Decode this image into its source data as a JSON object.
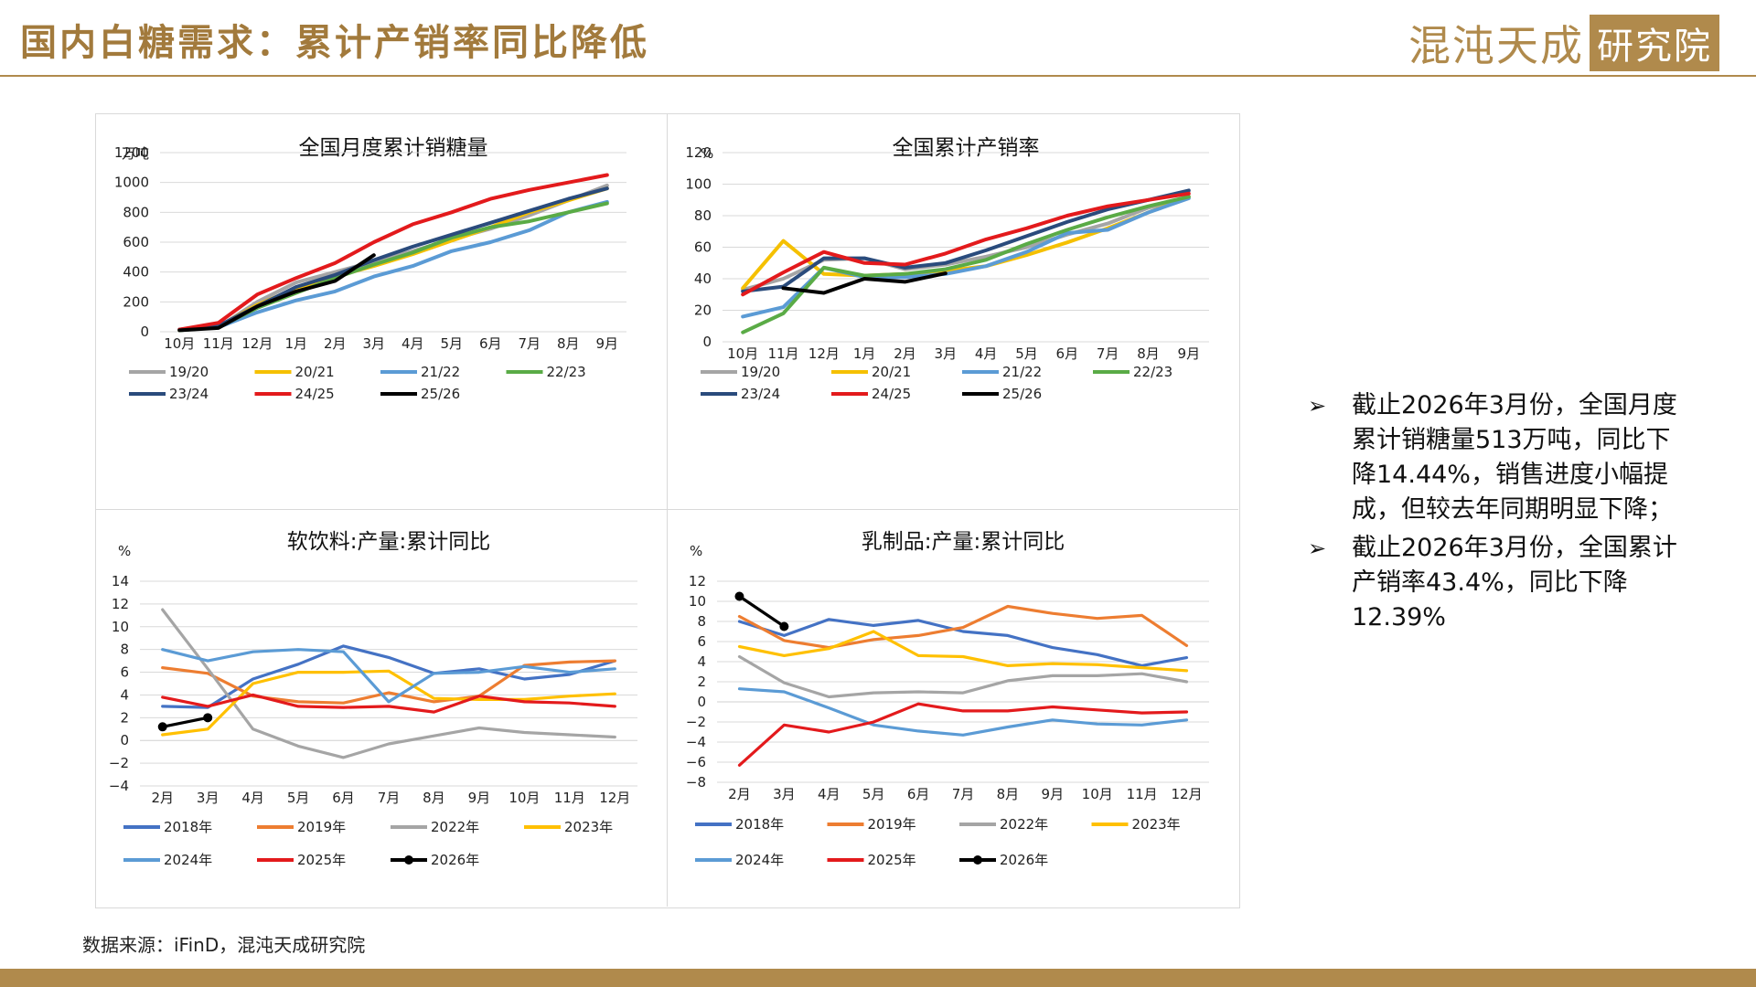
{
  "page": {
    "title": "国内白糖需求：累计产销率同比降低",
    "logo_text": "混沌天成",
    "logo_box_text": "研究院",
    "source": "数据来源：iFinD，混沌天成研究院"
  },
  "bullets": [
    {
      "mark": "➢",
      "text": "截止2026年3月份，全国月度累计销糖量513万吨，同比下降14.44%，销售进度小幅提成，但较去年同期明显下降；"
    },
    {
      "mark": "➢",
      "text": "截止2026年3月份，全国累计产销率43.4%，同比下降12.39%"
    }
  ],
  "chart_data": [
    {
      "id": "sales",
      "type": "line",
      "title": "全国月度累计销糖量",
      "ylabel": "万吨",
      "categories": [
        "10月",
        "11月",
        "12月",
        "1月",
        "2月",
        "3月",
        "4月",
        "5月",
        "6月",
        "7月",
        "8月",
        "9月"
      ],
      "ylim": [
        0,
        1200
      ],
      "yticks": [
        0,
        200,
        400,
        600,
        800,
        1000,
        1200
      ],
      "grid": true,
      "legend": "bottom",
      "series": [
        {
          "name": "19/20",
          "color": "#a5a5a5",
          "values": [
            10,
            30,
            200,
            330,
            400,
            470,
            540,
            620,
            690,
            780,
            880,
            980
          ]
        },
        {
          "name": "20/21",
          "color": "#f5c000",
          "values": [
            10,
            35,
            180,
            290,
            370,
            440,
            520,
            610,
            700,
            800,
            880,
            960
          ]
        },
        {
          "name": "21/22",
          "color": "#5b9bd5",
          "values": [
            10,
            30,
            130,
            210,
            270,
            370,
            440,
            540,
            600,
            680,
            800,
            870
          ]
        },
        {
          "name": "22/23",
          "color": "#5aab46",
          "values": [
            10,
            30,
            160,
            260,
            360,
            450,
            530,
            630,
            700,
            740,
            800,
            860
          ]
        },
        {
          "name": "23/24",
          "color": "#2a4b7c",
          "values": [
            15,
            40,
            170,
            300,
            380,
            480,
            570,
            650,
            730,
            810,
            890,
            960
          ]
        },
        {
          "name": "24/25",
          "color": "#e31a1c",
          "values": [
            15,
            60,
            250,
            360,
            460,
            600,
            720,
            800,
            890,
            950,
            1000,
            1050
          ]
        },
        {
          "name": "25/26",
          "color": "#000000",
          "values": [
            10,
            25,
            170,
            270,
            340,
            513,
            null,
            null,
            null,
            null,
            null,
            null
          ]
        }
      ]
    },
    {
      "id": "ratio",
      "type": "line",
      "title": "全国累计产销率",
      "ylabel": "%",
      "categories": [
        "10月",
        "11月",
        "12月",
        "1月",
        "2月",
        "3月",
        "4月",
        "5月",
        "6月",
        "7月",
        "8月",
        "9月"
      ],
      "ylim": [
        0,
        120
      ],
      "yticks": [
        0,
        20,
        40,
        60,
        80,
        100,
        120
      ],
      "grid": true,
      "legend": "bottom",
      "series": [
        {
          "name": "19/20",
          "color": "#a5a5a5",
          "values": [
            33,
            40,
            52,
            53,
            46,
            49,
            54,
            60,
            68,
            75,
            85,
            92
          ]
        },
        {
          "name": "20/21",
          "color": "#f5c000",
          "values": [
            34,
            64,
            43,
            42,
            43,
            45,
            48,
            55,
            63,
            72,
            82,
            92
          ]
        },
        {
          "name": "21/22",
          "color": "#5b9bd5",
          "values": [
            16,
            22,
            47,
            41,
            41,
            43,
            48,
            57,
            69,
            71,
            82,
            91
          ]
        },
        {
          "name": "22/23",
          "color": "#5aab46",
          "values": [
            6,
            18,
            47,
            42,
            43,
            46,
            52,
            62,
            71,
            79,
            86,
            92
          ]
        },
        {
          "name": "23/24",
          "color": "#2a4b7c",
          "values": [
            32,
            35,
            53,
            53,
            47,
            50,
            58,
            67,
            76,
            84,
            90,
            96
          ]
        },
        {
          "name": "24/25",
          "color": "#e31a1c",
          "values": [
            30,
            44,
            57,
            50,
            49,
            56,
            65,
            72,
            80,
            86,
            90,
            94
          ]
        },
        {
          "name": "25/26",
          "color": "#000000",
          "values": [
            null,
            34,
            31,
            40,
            38,
            43.4,
            null,
            null,
            null,
            null,
            null,
            null
          ]
        }
      ]
    },
    {
      "id": "softdrink",
      "type": "line",
      "title": "软饮料:产量:累计同比",
      "ylabel": "%",
      "categories": [
        "2月",
        "3月",
        "4月",
        "5月",
        "6月",
        "7月",
        "8月",
        "9月",
        "10月",
        "11月",
        "12月"
      ],
      "ylim": [
        -4,
        14
      ],
      "yticks": [
        -4,
        -2,
        0,
        2,
        4,
        6,
        8,
        10,
        12,
        14
      ],
      "grid": true,
      "legend": "bottom",
      "series": [
        {
          "name": "2018年",
          "color": "#4472c4",
          "values": [
            3.0,
            2.9,
            5.4,
            6.7,
            8.3,
            7.3,
            5.9,
            6.3,
            5.4,
            5.8,
            7.0
          ]
        },
        {
          "name": "2019年",
          "color": "#ed7d31",
          "values": [
            6.4,
            5.9,
            3.9,
            3.4,
            3.3,
            4.2,
            3.4,
            3.9,
            6.6,
            6.9,
            7.0
          ]
        },
        {
          "name": "2022年",
          "color": "#a5a5a5",
          "values": [
            11.5,
            6.3,
            1.0,
            -0.5,
            -1.5,
            -0.3,
            0.4,
            1.1,
            0.7,
            0.5,
            0.3
          ]
        },
        {
          "name": "2023年",
          "color": "#ffc000",
          "values": [
            0.5,
            1.0,
            5.0,
            6.0,
            6.0,
            6.1,
            3.7,
            3.6,
            3.6,
            3.9,
            4.1
          ]
        },
        {
          "name": "2024年",
          "color": "#5b9bd5",
          "values": [
            8.0,
            7.0,
            7.8,
            8.0,
            7.8,
            3.4,
            5.9,
            6.0,
            6.5,
            6.0,
            6.3
          ]
        },
        {
          "name": "2025年",
          "color": "#e31a1c",
          "values": [
            3.8,
            3.0,
            4.0,
            3.0,
            2.9,
            3.0,
            2.5,
            3.9,
            3.4,
            3.3,
            3.0
          ]
        },
        {
          "name": "2026年",
          "color": "#000000",
          "marker": true,
          "values": [
            1.2,
            2.0,
            null,
            null,
            null,
            null,
            null,
            null,
            null,
            null,
            null
          ]
        }
      ]
    },
    {
      "id": "dairy",
      "type": "line",
      "title": "乳制品:产量:累计同比",
      "ylabel": "%",
      "categories": [
        "2月",
        "3月",
        "4月",
        "5月",
        "6月",
        "7月",
        "8月",
        "9月",
        "10月",
        "11月",
        "12月"
      ],
      "ylim": [
        -8,
        12
      ],
      "yticks": [
        -8,
        -6,
        -4,
        -2,
        0,
        2,
        4,
        6,
        8,
        10,
        12
      ],
      "grid": true,
      "legend": "bottom",
      "series": [
        {
          "name": "2018年",
          "color": "#4472c4",
          "values": [
            8.0,
            6.6,
            8.2,
            7.6,
            8.1,
            7.0,
            6.6,
            5.4,
            4.7,
            3.6,
            4.4
          ]
        },
        {
          "name": "2019年",
          "color": "#ed7d31",
          "values": [
            8.5,
            6.1,
            5.4,
            6.2,
            6.6,
            7.4,
            9.5,
            8.8,
            8.3,
            8.6,
            5.6
          ]
        },
        {
          "name": "2022年",
          "color": "#a5a5a5",
          "values": [
            4.5,
            1.9,
            0.5,
            0.9,
            1.0,
            0.9,
            2.1,
            2.6,
            2.6,
            2.8,
            2.0
          ]
        },
        {
          "name": "2023年",
          "color": "#ffc000",
          "values": [
            5.5,
            4.6,
            5.3,
            7.0,
            4.6,
            4.5,
            3.6,
            3.8,
            3.7,
            3.4,
            3.1
          ]
        },
        {
          "name": "2024年",
          "color": "#5b9bd5",
          "values": [
            1.3,
            1.0,
            -0.6,
            -2.3,
            -2.9,
            -3.3,
            -2.5,
            -1.8,
            -2.2,
            -2.3,
            -1.8
          ]
        },
        {
          "name": "2025年",
          "color": "#e31a1c",
          "values": [
            -6.3,
            -2.3,
            -3.0,
            -2.0,
            -0.2,
            -0.9,
            -0.9,
            -0.5,
            -0.8,
            -1.1,
            -1.0
          ]
        },
        {
          "name": "2026年",
          "color": "#000000",
          "marker": true,
          "values": [
            10.5,
            7.5,
            null,
            null,
            null,
            null,
            null,
            null,
            null,
            null,
            null
          ]
        }
      ]
    }
  ]
}
